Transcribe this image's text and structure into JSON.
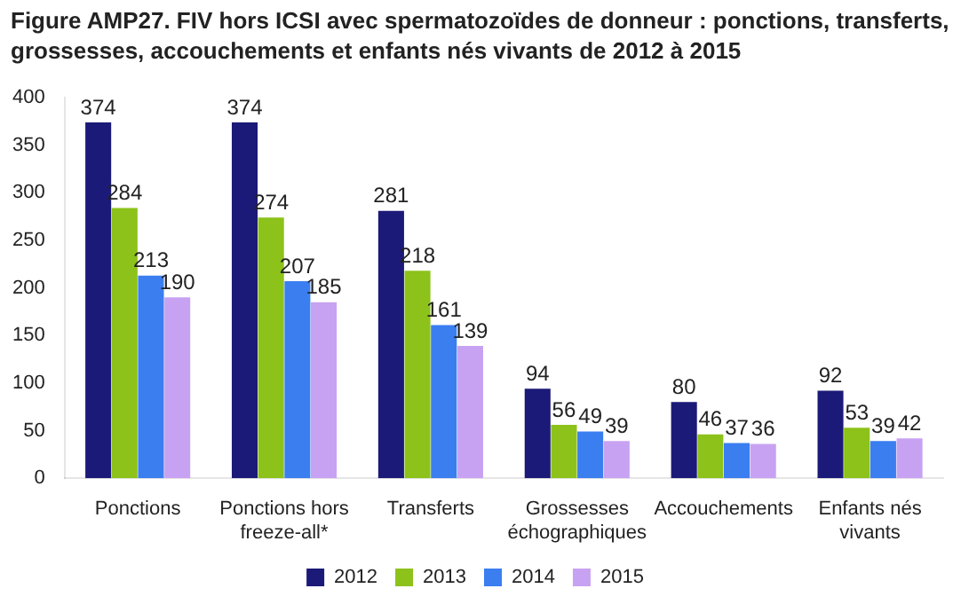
{
  "chart_data": {
    "type": "bar",
    "title": "Figure AMP27. FIV hors ICSI avec spermatozoïdes de donneur : ponctions, transferts, grossesses, accouchements et enfants nés vivants de 2012 à 2015",
    "categories": [
      "Ponctions",
      "Ponctions hors freeze-all*",
      "Transferts",
      "Grossesses échographiques",
      "Accouchements",
      "Enfants nés vivants"
    ],
    "series": [
      {
        "name": "2012",
        "color": "#1c1a78",
        "values": [
          374,
          374,
          281,
          94,
          80,
          92
        ]
      },
      {
        "name": "2013",
        "color": "#8cc21a",
        "values": [
          284,
          274,
          218,
          56,
          46,
          53
        ]
      },
      {
        "name": "2014",
        "color": "#3a7ef0",
        "values": [
          213,
          207,
          161,
          49,
          37,
          39
        ]
      },
      {
        "name": "2015",
        "color": "#c8a2f2",
        "values": [
          190,
          185,
          139,
          39,
          36,
          42
        ]
      }
    ],
    "ylim": [
      0,
      400
    ],
    "yticks": [
      0,
      50,
      100,
      150,
      200,
      250,
      300,
      350,
      400
    ],
    "grid": false,
    "legend": "bottom",
    "data_labels": true
  }
}
